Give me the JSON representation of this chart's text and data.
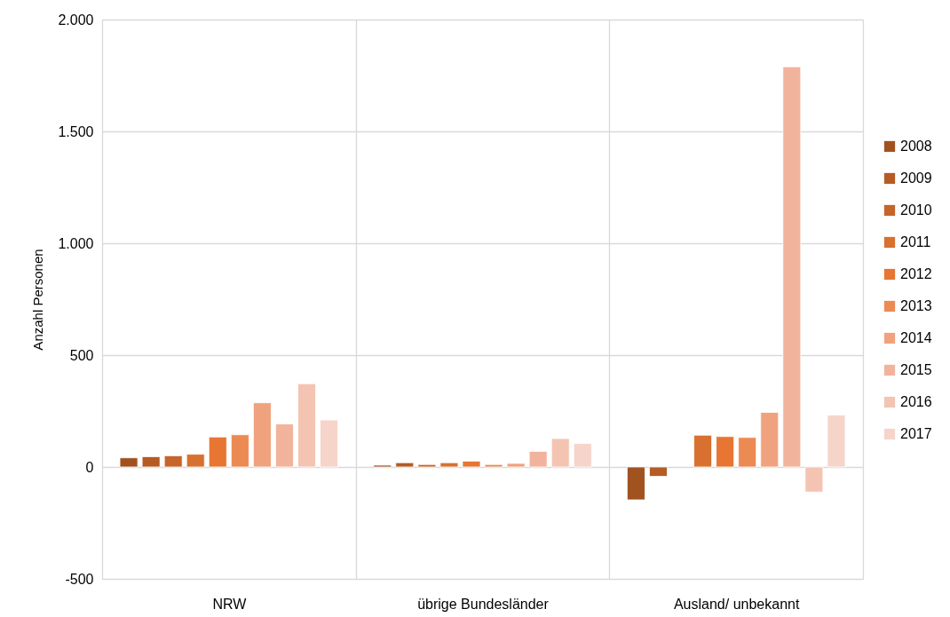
{
  "chart_data": {
    "type": "bar",
    "ylabel": "Anzahl Personen",
    "categories": [
      "NRW",
      "übrige Bundesländer",
      "Ausland/ unbekannt"
    ],
    "series": [
      {
        "name": "2008",
        "color": "#a0521f",
        "values": [
          41,
          8,
          -147
        ]
      },
      {
        "name": "2009",
        "color": "#b55b24",
        "values": [
          46,
          19,
          -42
        ]
      },
      {
        "name": "2010",
        "color": "#c7642b",
        "values": [
          50,
          11,
          null
        ]
      },
      {
        "name": "2011",
        "color": "#d8712f",
        "values": [
          57,
          19,
          142
        ]
      },
      {
        "name": "2012",
        "color": "#e67632",
        "values": [
          134,
          26,
          136
        ]
      },
      {
        "name": "2013",
        "color": "#ec8a53",
        "values": [
          144,
          11,
          132
        ]
      },
      {
        "name": "2014",
        "color": "#f0a27e",
        "values": [
          287,
          16,
          244
        ]
      },
      {
        "name": "2015",
        "color": "#f2b39c",
        "values": [
          192,
          70,
          1789
        ]
      },
      {
        "name": "2016",
        "color": "#f4c4b3",
        "values": [
          372,
          127,
          -112
        ]
      },
      {
        "name": "2017",
        "color": "#f6d4ca",
        "values": [
          210,
          105,
          232
        ]
      }
    ],
    "ylim": [
      -500,
      2000
    ],
    "yticks": [
      -500,
      0,
      500,
      {
        "value": 1000,
        "label": "1.000"
      },
      {
        "value": 1500,
        "label": "1.500"
      },
      {
        "value": 2000,
        "label": "2.000"
      }
    ],
    "grid": true,
    "legend": "right"
  }
}
